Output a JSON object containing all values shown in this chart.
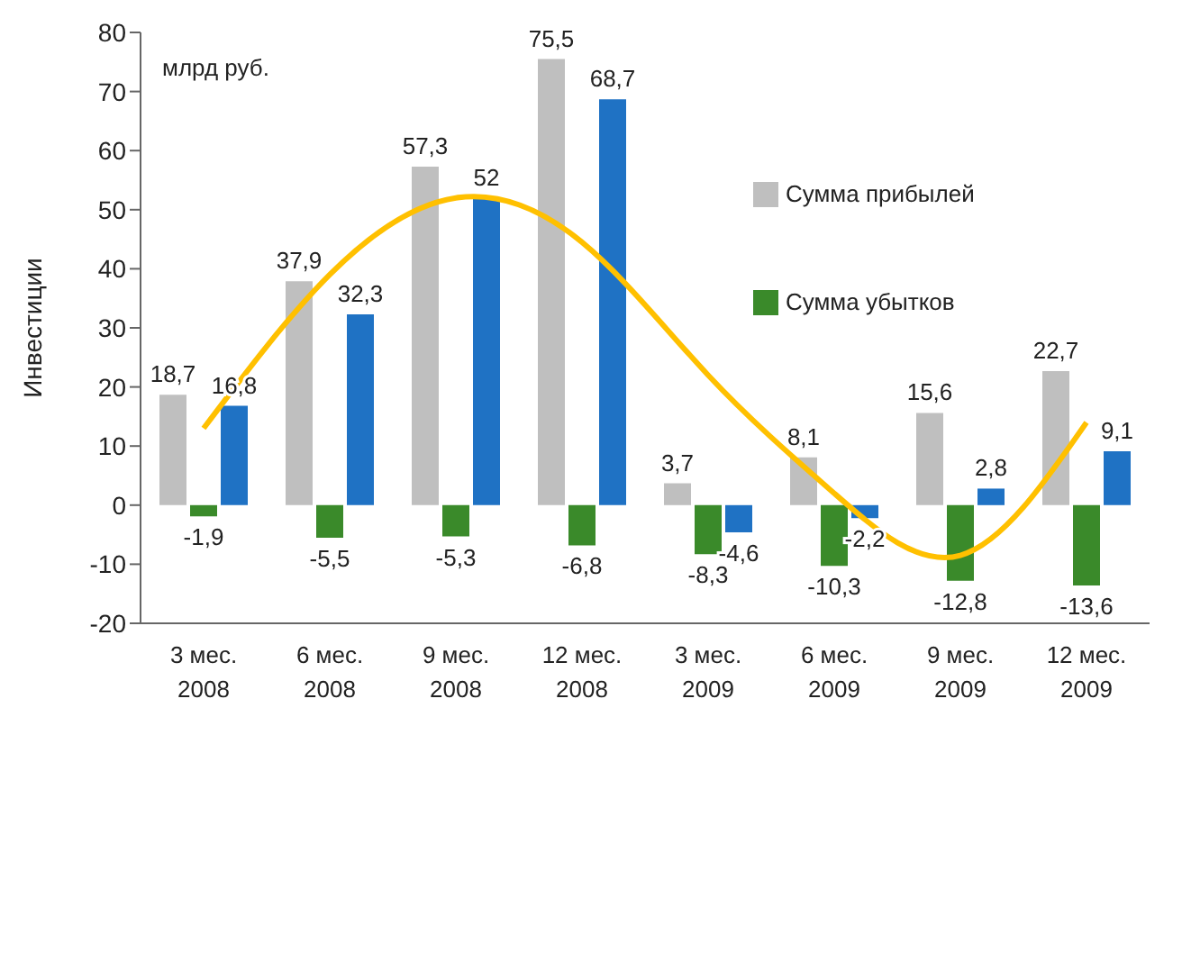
{
  "chart_data": {
    "type": "bar",
    "ylabel": "Инвестиции",
    "annotations": [
      "млрд руб."
    ],
    "categories": [
      "3 мес. 2008",
      "6 мес. 2008",
      "9 мес. 2008",
      "12 мес. 2008",
      "3 мес. 2009",
      "6 мес. 2009",
      "9 мес. 2009",
      "12 мес. 2009"
    ],
    "series": [
      {
        "name": "Сумма прибылей",
        "color": "#bfbfbf",
        "values": [
          18.7,
          37.9,
          57.3,
          75.5,
          3.7,
          8.1,
          15.6,
          22.7
        ],
        "value_labels": [
          "18,7",
          "37,9",
          "57,3",
          "75,5",
          "3,7",
          "8,1",
          "15,6",
          "22,7"
        ]
      },
      {
        "name": "Сумма убытков",
        "color": "#3a8a2a",
        "values": [
          -1.9,
          -5.5,
          -5.3,
          -6.8,
          -8.3,
          -10.3,
          -12.8,
          -13.6
        ],
        "value_labels": [
          "-1,9",
          "-5,5",
          "-5,3",
          "-6,8",
          "-8,3",
          "-10,3",
          "-12,8",
          "-13,6"
        ]
      },
      {
        "color": "#1f72c4",
        "values": [
          16.8,
          32.3,
          52,
          68.7,
          -4.6,
          -2.2,
          2.8,
          9.1
        ],
        "value_labels": [
          "16,8",
          "32,3",
          "52",
          "68,7",
          "-4,6",
          "-2,2",
          "2,8",
          "9,1"
        ]
      },
      {
        "type": "line",
        "color": "#ffc000",
        "values": [
          13,
          39,
          52,
          44.5,
          22,
          2,
          -8.5,
          14
        ],
        "marker": "none",
        "line_style": "solid"
      }
    ],
    "ylim": [
      -20,
      80
    ],
    "yticks": [
      -20,
      -10,
      0,
      10,
      20,
      30,
      40,
      50,
      60,
      70,
      80
    ],
    "legend": "top right"
  }
}
